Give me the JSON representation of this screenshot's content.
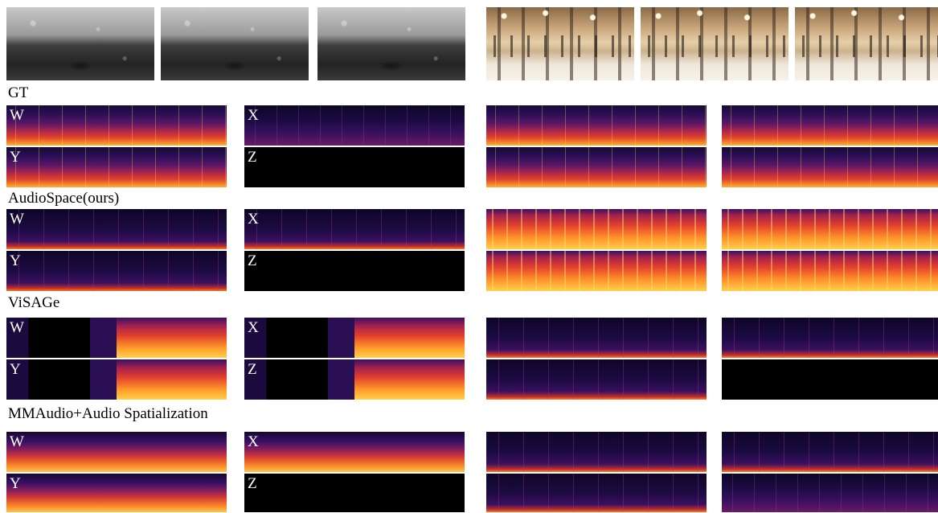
{
  "captions": {
    "gt": "GT",
    "audiospace": "AudioSpace(ours)",
    "visage": "ViSAGe",
    "mmaudio": "MMAudio+Audio Spatialization"
  },
  "channels": {
    "w": "W",
    "x": "X",
    "y": "Y",
    "z": "Z"
  },
  "frames": {
    "scene1": "gray outdoor panorama",
    "scene2": "indoor shopping mall panorama"
  },
  "colormap": [
    "#000004",
    "#3b0f70",
    "#8c2981",
    "#de4968",
    "#fe9f6d",
    "#fcfdbf"
  ]
}
